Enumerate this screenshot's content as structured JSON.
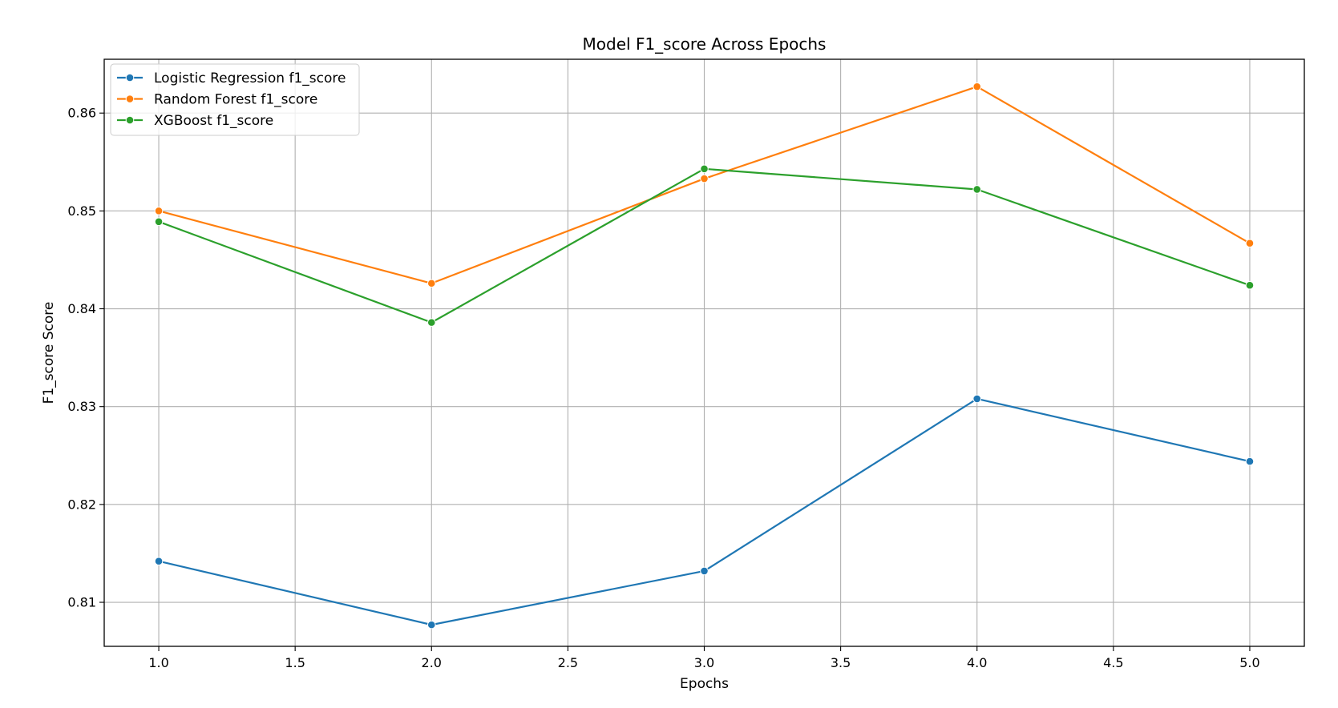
{
  "chart_data": {
    "type": "line",
    "title": "Model F1_score Across Epochs",
    "xlabel": "Epochs",
    "ylabel": "F1_score Score",
    "x": [
      1.0,
      2.0,
      3.0,
      4.0,
      5.0
    ],
    "xlim": [
      0.8,
      5.2
    ],
    "ylim": [
      0.8055,
      0.8655
    ],
    "xticks": [
      1.0,
      1.5,
      2.0,
      2.5,
      3.0,
      3.5,
      4.0,
      4.5,
      5.0
    ],
    "xtick_labels": [
      "1.0",
      "1.5",
      "2.0",
      "2.5",
      "3.0",
      "3.5",
      "4.0",
      "4.5",
      "5.0"
    ],
    "yticks": [
      0.81,
      0.82,
      0.83,
      0.84,
      0.85,
      0.86
    ],
    "ytick_labels": [
      "0.81",
      "0.82",
      "0.83",
      "0.84",
      "0.85",
      "0.86"
    ],
    "grid": true,
    "legend_position": "top-left",
    "series": [
      {
        "name": "Logistic Regression f1_score",
        "color": "#1f77b4",
        "marker": "circle",
        "values": [
          0.8142,
          0.8077,
          0.8132,
          0.8308,
          0.8244
        ]
      },
      {
        "name": "Random Forest f1_score",
        "color": "#ff7f0e",
        "marker": "circle",
        "values": [
          0.85,
          0.8426,
          0.8533,
          0.8627,
          0.8467
        ]
      },
      {
        "name": "XGBoost f1_score",
        "color": "#2ca02c",
        "marker": "circle",
        "values": [
          0.8489,
          0.8386,
          0.8543,
          0.8522,
          0.8424
        ]
      }
    ]
  }
}
